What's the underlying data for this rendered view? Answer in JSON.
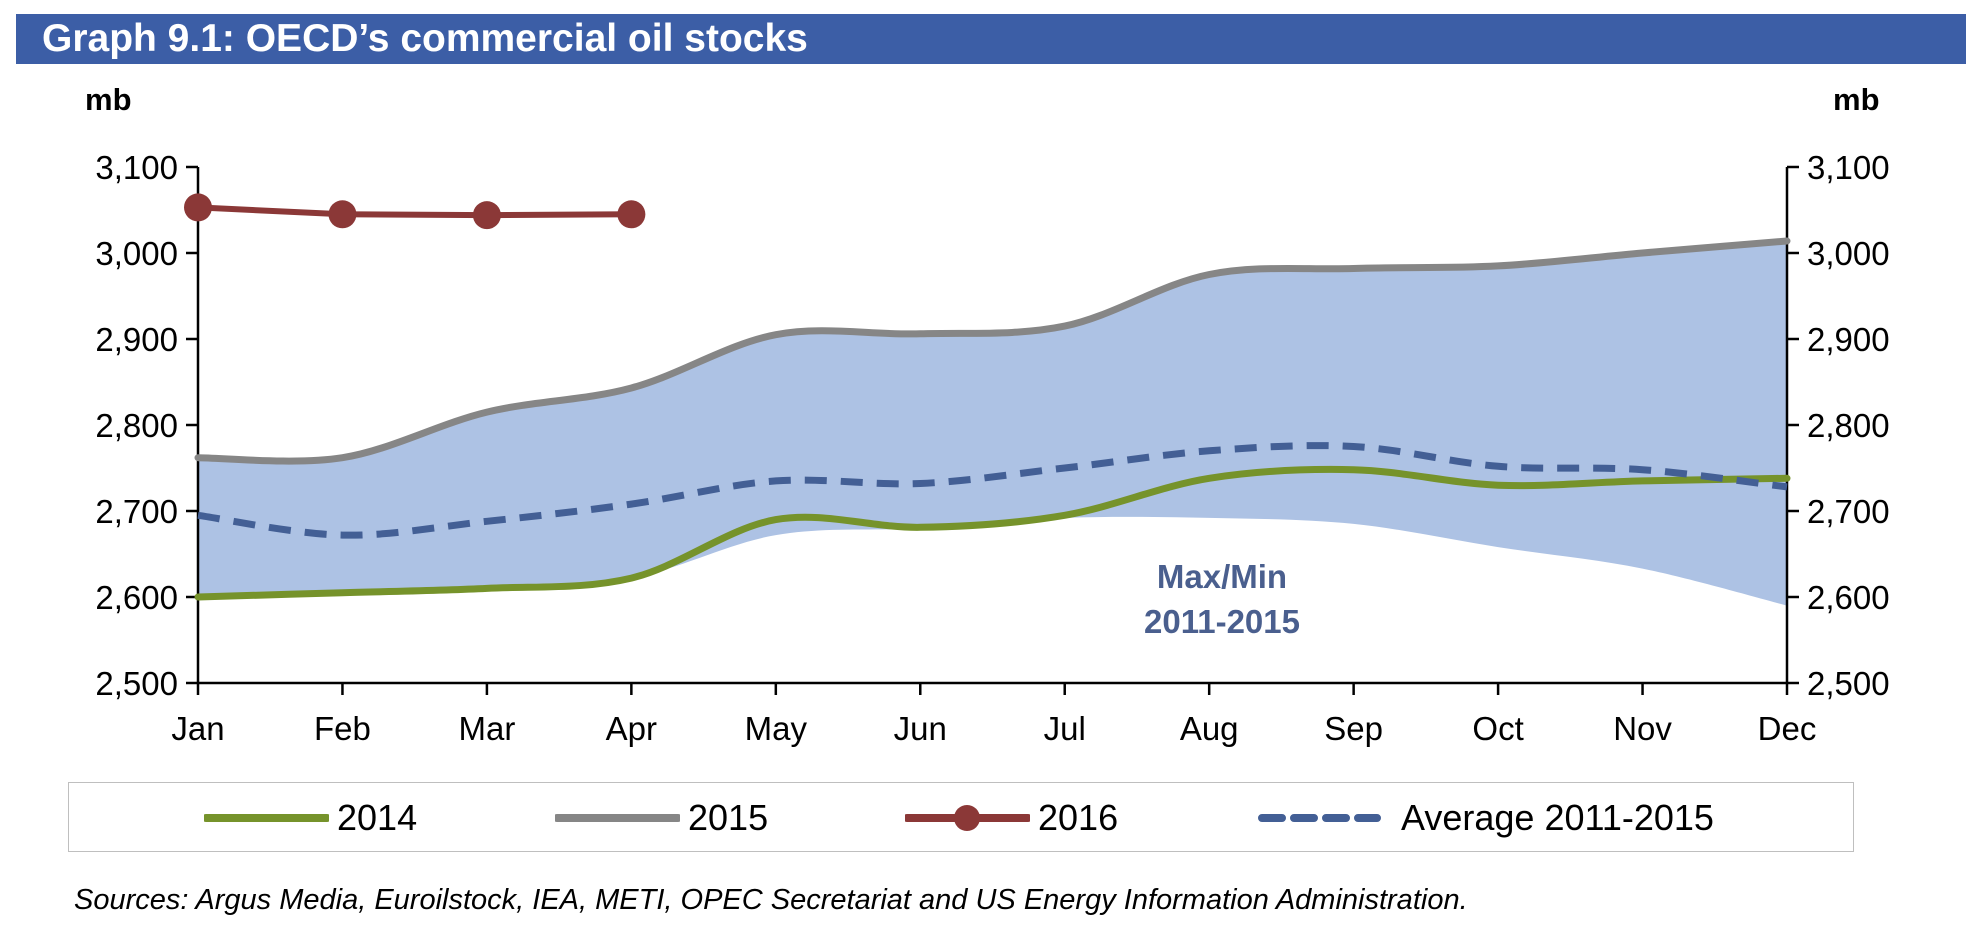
{
  "chart_data": {
    "type": "line",
    "title": "Graph 9.1: OECD’s commercial oil stocks",
    "ylabel_left": "mb",
    "ylabel_right": "mb",
    "ylim": [
      2500,
      3100
    ],
    "yticks": [
      2500,
      2600,
      2700,
      2800,
      2900,
      3000,
      3100
    ],
    "ytick_labels": [
      "2,500",
      "2,600",
      "2,700",
      "2,800",
      "2,900",
      "3,000",
      "3,100"
    ],
    "categories": [
      "Jan",
      "Feb",
      "Mar",
      "Apr",
      "May",
      "Jun",
      "Jul",
      "Aug",
      "Sep",
      "Oct",
      "Nov",
      "Dec"
    ],
    "band": {
      "label": "Max/Min 2011-2015",
      "label_lines": [
        "Max/Min",
        "2011-2015"
      ],
      "upper": [
        2762,
        2762,
        2815,
        2843,
        2905,
        2906,
        2915,
        2975,
        2982,
        2985,
        3000,
        3014
      ],
      "lower": [
        2600,
        2605,
        2610,
        2622,
        2672,
        2680,
        2692,
        2692,
        2685,
        2658,
        2633,
        2590
      ],
      "color": "#adc2e4"
    },
    "series": [
      {
        "name": "2014",
        "color": "#76932b",
        "style": "solid",
        "values": [
          2600,
          2605,
          2610,
          2622,
          2690,
          2681,
          2695,
          2738,
          2748,
          2730,
          2735,
          2738
        ]
      },
      {
        "name": "2015",
        "color": "#868686",
        "style": "solid",
        "values": [
          2762,
          2762,
          2815,
          2843,
          2905,
          2906,
          2915,
          2975,
          2982,
          2985,
          3000,
          3014
        ]
      },
      {
        "name": "2016",
        "color": "#8b3837",
        "style": "solid-markers",
        "values": [
          3053,
          3045,
          3044,
          3045,
          null,
          null,
          null,
          null,
          null,
          null,
          null,
          null
        ]
      },
      {
        "name": "Average 2011-2015",
        "color": "#435f95",
        "style": "dashed",
        "values": [
          2695,
          2672,
          2688,
          2708,
          2735,
          2732,
          2750,
          2770,
          2775,
          2752,
          2748,
          2728
        ]
      }
    ],
    "grid": false,
    "legend_position": "bottom"
  },
  "sources": "Sources: Argus Media, Euroilstock, IEA, METI, OPEC Secretariat and US Energy Information Administration."
}
